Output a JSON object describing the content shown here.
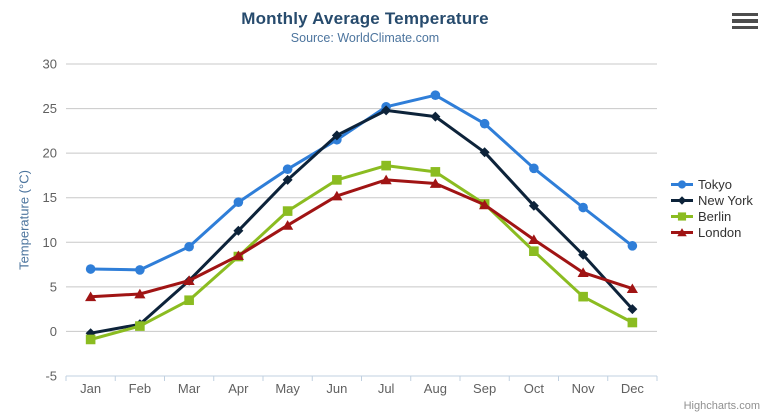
{
  "chart_data": {
    "type": "line",
    "title": "Monthly Average Temperature",
    "subtitle": "Source: WorldClimate.com",
    "xlabel": "",
    "ylabel": "Temperature (°C)",
    "categories": [
      "Jan",
      "Feb",
      "Mar",
      "Apr",
      "May",
      "Jun",
      "Jul",
      "Aug",
      "Sep",
      "Oct",
      "Nov",
      "Dec"
    ],
    "ylim": [
      -5,
      30
    ],
    "yticks": [
      -5,
      0,
      5,
      10,
      15,
      20,
      25,
      30
    ],
    "grid": true,
    "legend_position": "right-middle",
    "series": [
      {
        "name": "Tokyo",
        "color": "#2f7ed8",
        "marker": "circle",
        "values": [
          7.0,
          6.9,
          9.5,
          14.5,
          18.2,
          21.5,
          25.2,
          26.5,
          23.3,
          18.3,
          13.9,
          9.6
        ]
      },
      {
        "name": "New York",
        "color": "#0d233a",
        "marker": "diamond",
        "values": [
          -0.2,
          0.8,
          5.7,
          11.3,
          17.0,
          22.0,
          24.8,
          24.1,
          20.1,
          14.1,
          8.6,
          2.5
        ]
      },
      {
        "name": "Berlin",
        "color": "#8bbc21",
        "marker": "square",
        "values": [
          -0.9,
          0.6,
          3.5,
          8.4,
          13.5,
          17.0,
          18.6,
          17.9,
          14.3,
          9.0,
          3.9,
          1.0
        ]
      },
      {
        "name": "London",
        "color": "#a01414",
        "marker": "triangle",
        "values": [
          3.9,
          4.2,
          5.7,
          8.5,
          11.9,
          15.2,
          17.0,
          16.6,
          14.2,
          10.3,
          6.6,
          4.8
        ]
      }
    ]
  },
  "colors": {
    "title": "#274b6d",
    "subtitle": "#4d759e",
    "axis_label": "#606060",
    "grid_line": "#c8c8c8",
    "axis_line": "#c0d0e0",
    "legend_text": "#333333",
    "credits_text": "#909090"
  },
  "credits": {
    "label": "Highcharts.com"
  },
  "context_menu": {
    "icon": "hamburger-icon"
  }
}
